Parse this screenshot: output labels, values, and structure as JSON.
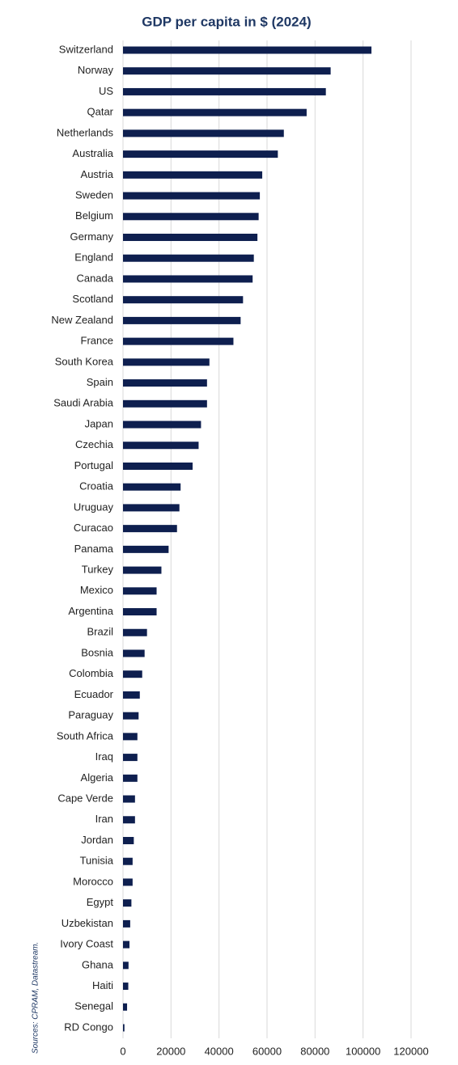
{
  "chart_data": {
    "type": "hbar",
    "title": "GDP per capita in $ (2024)",
    "source": "Sources: CPRAM, Datastream.",
    "categories": [
      "Switzerland",
      "Norway",
      "US",
      "Qatar",
      "Netherlands",
      "Australia",
      "Austria",
      "Sweden",
      "Belgium",
      "Germany",
      "England",
      "Canada",
      "Scotland",
      "New Zealand",
      "France",
      "South Korea",
      "Spain",
      "Saudi Arabia",
      "Japan",
      "Czechia",
      "Portugal",
      "Croatia",
      "Uruguay",
      "Curacao",
      "Panama",
      "Turkey",
      "Mexico",
      "Argentina",
      "Brazil",
      "Bosnia",
      "Colombia",
      "Ecuador",
      "Paraguay",
      "South Africa",
      "Iraq",
      "Algeria",
      "Cape Verde",
      "Iran",
      "Jordan",
      "Tunisia",
      "Morocco",
      "Egypt",
      "Uzbekistan",
      "Ivory Coast",
      "Ghana",
      "Haiti",
      "Senegal",
      "RD Congo"
    ],
    "values": [
      103500,
      86500,
      84500,
      76500,
      67000,
      64500,
      58000,
      57000,
      56500,
      56000,
      54500,
      54000,
      50000,
      49000,
      46000,
      36000,
      35000,
      35000,
      32500,
      31500,
      29000,
      24000,
      23500,
      22500,
      19000,
      16000,
      14000,
      14000,
      10000,
      9000,
      8000,
      7000,
      6500,
      6000,
      6000,
      6000,
      5000,
      5000,
      4500,
      4000,
      4000,
      3500,
      3000,
      2700,
      2300,
      2200,
      1700,
      600
    ],
    "color": "#0e1f4f",
    "xlim": [
      0,
      120000
    ],
    "xticks": [
      0,
      20000,
      40000,
      60000,
      80000,
      100000,
      120000
    ],
    "grid": true
  }
}
